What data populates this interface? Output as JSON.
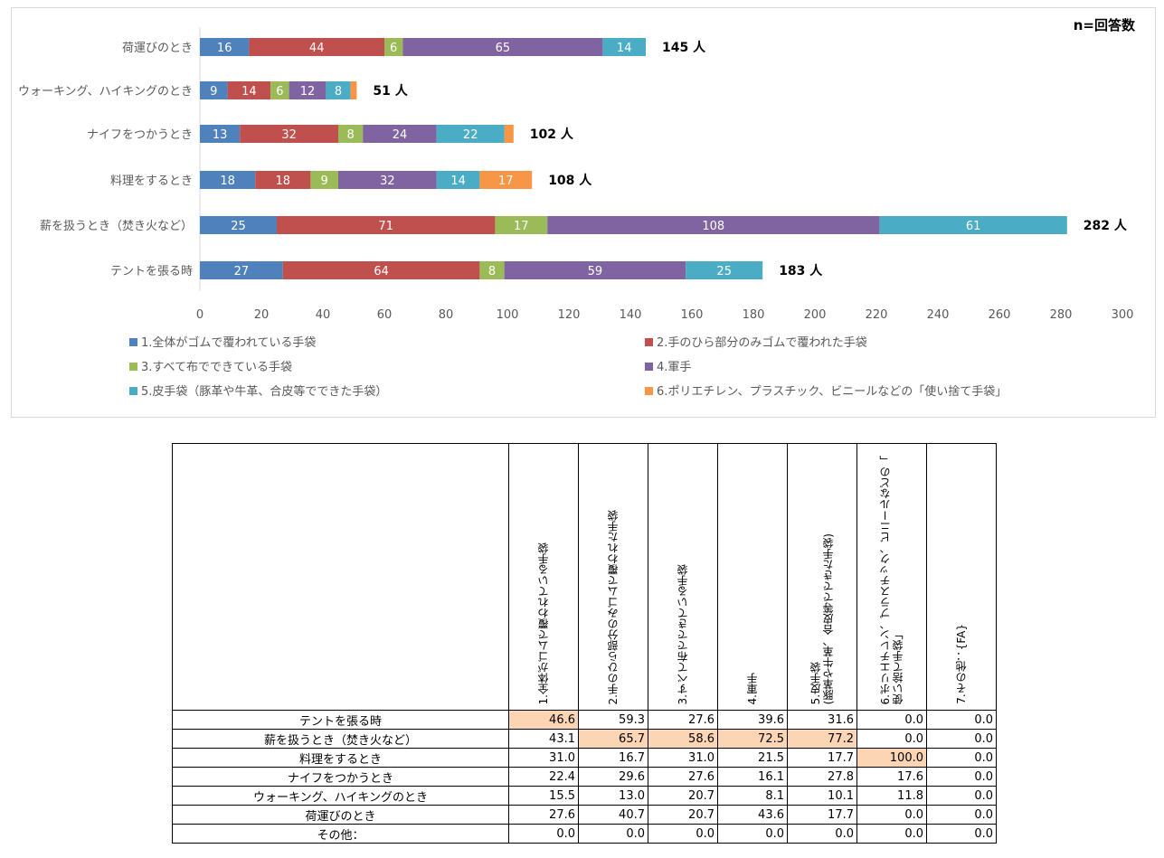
{
  "chart_data": {
    "type": "bar",
    "orientation": "horizontal",
    "stacked": true,
    "note": "n=回答数",
    "categories": [
      "荷運びのとき",
      "ウォーキング、ハイキングのとき",
      "ナイフをつかうとき",
      "料理をするとき",
      "薪を扱うとき（焚き火など）",
      "テントを張る時"
    ],
    "totals": [
      145,
      51,
      102,
      108,
      282,
      183
    ],
    "total_suffix": "人",
    "series": [
      {
        "name": "1.全体がゴムで覆われている手袋",
        "color": "#4f81bd",
        "values": [
          16,
          9,
          13,
          18,
          25,
          27
        ]
      },
      {
        "name": "2.手のひら部分のみゴムで覆われた手袋",
        "color": "#c0504d",
        "values": [
          44,
          14,
          32,
          18,
          71,
          64
        ]
      },
      {
        "name": "3.すべて布でできている手袋",
        "color": "#9bbb59",
        "values": [
          6,
          6,
          8,
          9,
          17,
          8
        ]
      },
      {
        "name": "4.軍手",
        "color": "#8064a2",
        "values": [
          65,
          12,
          24,
          32,
          108,
          59
        ]
      },
      {
        "name": "5.皮手袋（豚革や牛革、合皮等でできた手袋）",
        "color": "#4bacc6",
        "values": [
          14,
          8,
          22,
          14,
          61,
          25
        ]
      },
      {
        "name": "6.ポリエチレン、プラスチック、ビニールなどの「使い捨て手袋」",
        "color": "#f79646",
        "values": [
          0,
          2,
          3,
          17,
          0,
          0
        ]
      }
    ],
    "xlim": [
      0,
      300
    ],
    "xticks": [
      0,
      20,
      40,
      60,
      80,
      100,
      120,
      140,
      160,
      180,
      200,
      220,
      240,
      260,
      280,
      300
    ],
    "grid": false,
    "legend": "bottom"
  },
  "table": {
    "headers": [
      "1.全体がゴムで覆われている手袋",
      "2.手のひら部分のみゴムで覆われた手袋",
      "3.すべて布でできている手袋",
      "4.軍手",
      "5.皮手袋\n(豚革や牛革、合皮等でできた手袋)",
      "6.ポリエチレン、プラスチック、ビニールなどの「\n使い捨て手袋」",
      "7.その他：{FA}"
    ],
    "rows": [
      {
        "label": "テントを張る時",
        "values": [
          "46.6",
          "59.3",
          "27.6",
          "39.6",
          "31.6",
          "0.0",
          "0.0"
        ],
        "highlight": [
          0
        ]
      },
      {
        "label": "薪を扱うとき（焚き火など）",
        "values": [
          "43.1",
          "65.7",
          "58.6",
          "72.5",
          "77.2",
          "0.0",
          "0.0"
        ],
        "highlight": [
          1,
          2,
          3,
          4
        ]
      },
      {
        "label": "料理をするとき",
        "values": [
          "31.0",
          "16.7",
          "31.0",
          "21.5",
          "17.7",
          "100.0",
          "0.0"
        ],
        "highlight": [
          5
        ]
      },
      {
        "label": "ナイフをつかうとき",
        "values": [
          "22.4",
          "29.6",
          "27.6",
          "16.1",
          "27.8",
          "17.6",
          "0.0"
        ],
        "highlight": []
      },
      {
        "label": "ウォーキング、ハイキングのとき",
        "values": [
          "15.5",
          "13.0",
          "20.7",
          "8.1",
          "10.1",
          "11.8",
          "0.0"
        ],
        "highlight": []
      },
      {
        "label": "荷運びのとき",
        "values": [
          "27.6",
          "40.7",
          "20.7",
          "43.6",
          "17.7",
          "0.0",
          "0.0"
        ],
        "highlight": []
      },
      {
        "label": "その他：",
        "values": [
          "0.0",
          "0.0",
          "0.0",
          "0.0",
          "0.0",
          "0.0",
          "0.0"
        ],
        "highlight": []
      }
    ],
    "highlight_color": "#fcd5b4"
  }
}
